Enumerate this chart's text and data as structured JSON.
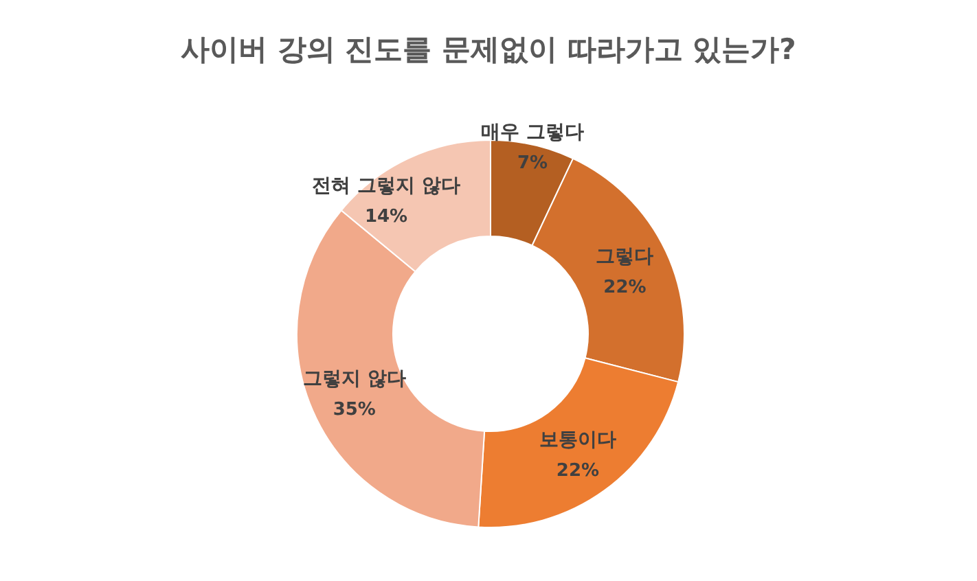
{
  "chart_data": {
    "type": "donut",
    "title": "사이버 강의 진도를 문제없이 따라가고 있는가?",
    "categories": [
      "매우 그렇다",
      "그렇다",
      "보통이다",
      "그렇지 않다",
      "전혀 그렇지 않다"
    ],
    "values": [
      7,
      22,
      22,
      35,
      14
    ],
    "value_labels": [
      "7%",
      "22%",
      "22%",
      "35%",
      "14%"
    ],
    "colors": [
      "#b45f22",
      "#d3702d",
      "#ed7d31",
      "#f1a98a",
      "#f5c6b2"
    ],
    "legend": false
  }
}
